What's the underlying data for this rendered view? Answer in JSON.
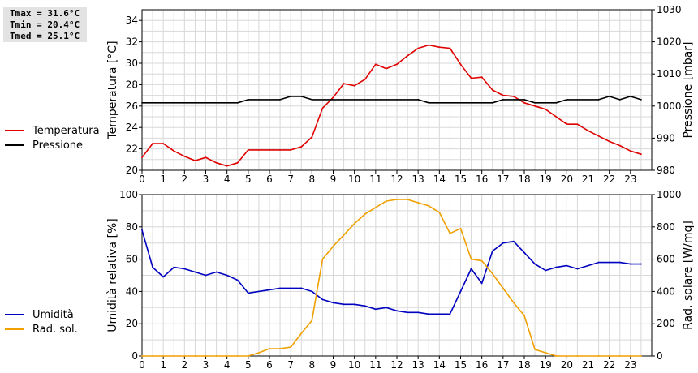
{
  "stats": {
    "tmax": "Tmax = 31.6°C",
    "tmin": "Tmin = 20.4°C",
    "tmed": "Tmed = 25.1°C"
  },
  "colors": {
    "temperature": "#e00000",
    "pressure": "#000000",
    "humidity": "#0000c0",
    "radiation": "#f0a000",
    "grid": "#d8d8d8"
  },
  "chart_data": [
    {
      "type": "line",
      "ylabel": "Temperatura [°C]",
      "y2label": "Pressione [mbar]",
      "xlim": [
        0,
        24
      ],
      "ylim": [
        20,
        35
      ],
      "y2lim": [
        980,
        1030
      ],
      "xticks": [
        "0",
        "1",
        "2",
        "3",
        "4",
        "5",
        "6",
        "7",
        "8",
        "9",
        "10",
        "11",
        "12",
        "13",
        "14",
        "15",
        "16",
        "17",
        "18",
        "19",
        "20",
        "21",
        "22",
        "23"
      ],
      "yticks": [
        "20",
        "22",
        "24",
        "26",
        "28",
        "30",
        "32",
        "34"
      ],
      "y2ticks": [
        "980",
        "990",
        "1000",
        "1010",
        "1020",
        "1030"
      ],
      "grid": true,
      "legend_placement": "left",
      "series": [
        {
          "name": "Temperatura",
          "axis": "left",
          "x": [
            0,
            0.5,
            1,
            1.5,
            2,
            2.5,
            3,
            3.5,
            4,
            4.5,
            5,
            5.5,
            6,
            6.5,
            7,
            7.5,
            8,
            8.5,
            9,
            9.5,
            10,
            10.5,
            11,
            11.5,
            12,
            12.5,
            13,
            13.5,
            14,
            14.5,
            15,
            15.5,
            16,
            16.5,
            17,
            17.5,
            18,
            18.5,
            19,
            19.5,
            20,
            20.5,
            21,
            21.5,
            22,
            22.5,
            23,
            23.5
          ],
          "y": [
            21.2,
            22.5,
            22.5,
            21.8,
            21.3,
            20.9,
            21.2,
            20.7,
            20.4,
            20.7,
            21.9,
            21.9,
            21.9,
            21.9,
            21.9,
            22.2,
            23.1,
            25.8,
            26.8,
            28.1,
            27.9,
            28.5,
            29.9,
            29.5,
            29.9,
            30.7,
            31.4,
            31.7,
            31.5,
            31.4,
            29.9,
            28.6,
            28.7,
            27.5,
            27.0,
            26.9,
            26.3,
            26.0,
            25.7,
            25.0,
            24.3,
            24.3,
            23.7,
            23.2,
            22.7,
            22.3,
            21.8,
            21.5
          ]
        },
        {
          "name": "Pressione",
          "axis": "right",
          "x": [
            0,
            4.5,
            5,
            6.5,
            7,
            7.5,
            8,
            13,
            13.5,
            16.5,
            17,
            18,
            18.5,
            19.5,
            20,
            21.5,
            22,
            22.5,
            23,
            23.5
          ],
          "y": [
            1001,
            1001,
            1002,
            1002,
            1003,
            1003,
            1002,
            1002,
            1001,
            1001,
            1002,
            1002,
            1001,
            1001,
            1002,
            1002,
            1003,
            1002,
            1003,
            1002
          ]
        }
      ]
    },
    {
      "type": "line",
      "ylabel": "Umidità relativa [%]",
      "y2label": "Rad. solare [W/mq]",
      "xlim": [
        0,
        24
      ],
      "ylim": [
        0,
        100
      ],
      "y2lim": [
        0,
        1000
      ],
      "xticks": [
        "0",
        "1",
        "2",
        "3",
        "4",
        "5",
        "6",
        "7",
        "8",
        "9",
        "10",
        "11",
        "12",
        "13",
        "14",
        "15",
        "16",
        "17",
        "18",
        "19",
        "20",
        "21",
        "22",
        "23"
      ],
      "yticks": [
        "0",
        "20",
        "40",
        "60",
        "80",
        "100"
      ],
      "y2ticks": [
        "0",
        "200",
        "400",
        "600",
        "800",
        "1000"
      ],
      "grid": true,
      "legend_placement": "left",
      "series": [
        {
          "name": "Umidità",
          "axis": "left",
          "x": [
            0,
            0.5,
            1,
            1.5,
            2,
            2.5,
            3,
            3.5,
            4,
            4.5,
            5,
            5.5,
            6,
            6.5,
            7,
            7.5,
            8,
            8.5,
            9,
            9.5,
            10,
            10.5,
            11,
            11.5,
            12,
            12.5,
            13,
            13.5,
            14,
            14.5,
            15,
            15.5,
            16,
            16.5,
            17,
            17.5,
            18,
            18.5,
            19,
            19.5,
            20,
            20.5,
            21,
            21.5,
            22,
            22.5,
            23,
            23.5
          ],
          "y": [
            78,
            55,
            49,
            55,
            54,
            52,
            50,
            52,
            50,
            47,
            39,
            40,
            41,
            42,
            42,
            42,
            40,
            35,
            33,
            32,
            32,
            31,
            29,
            30,
            28,
            27,
            27,
            26,
            26,
            26,
            40,
            54,
            45,
            65,
            70,
            71,
            64,
            57,
            53,
            55,
            56,
            54,
            56,
            58,
            58,
            58,
            57,
            57
          ]
        },
        {
          "name": "Rad. sol.",
          "axis": "right",
          "x": [
            0,
            0.5,
            1,
            1.5,
            2,
            2.5,
            3,
            3.5,
            4,
            4.5,
            5,
            5.5,
            6,
            6.5,
            7,
            7.5,
            8,
            8.5,
            9,
            9.5,
            10,
            10.5,
            11,
            11.5,
            12,
            12.5,
            13,
            13.5,
            14,
            14.5,
            15,
            15.5,
            16,
            16.5,
            17,
            17.5,
            18,
            18.5,
            19,
            19.5,
            20,
            20.5,
            21,
            21.5,
            22,
            22.5,
            23,
            23.5
          ],
          "y": [
            0,
            0,
            0,
            0,
            0,
            0,
            0,
            0,
            0,
            0,
            0,
            20,
            45,
            45,
            55,
            140,
            220,
            600,
            680,
            750,
            820,
            880,
            920,
            960,
            970,
            970,
            950,
            930,
            890,
            760,
            790,
            600,
            590,
            510,
            420,
            330,
            250,
            40,
            20,
            0,
            0,
            0,
            0,
            0,
            0,
            0,
            0,
            0
          ]
        }
      ]
    }
  ]
}
